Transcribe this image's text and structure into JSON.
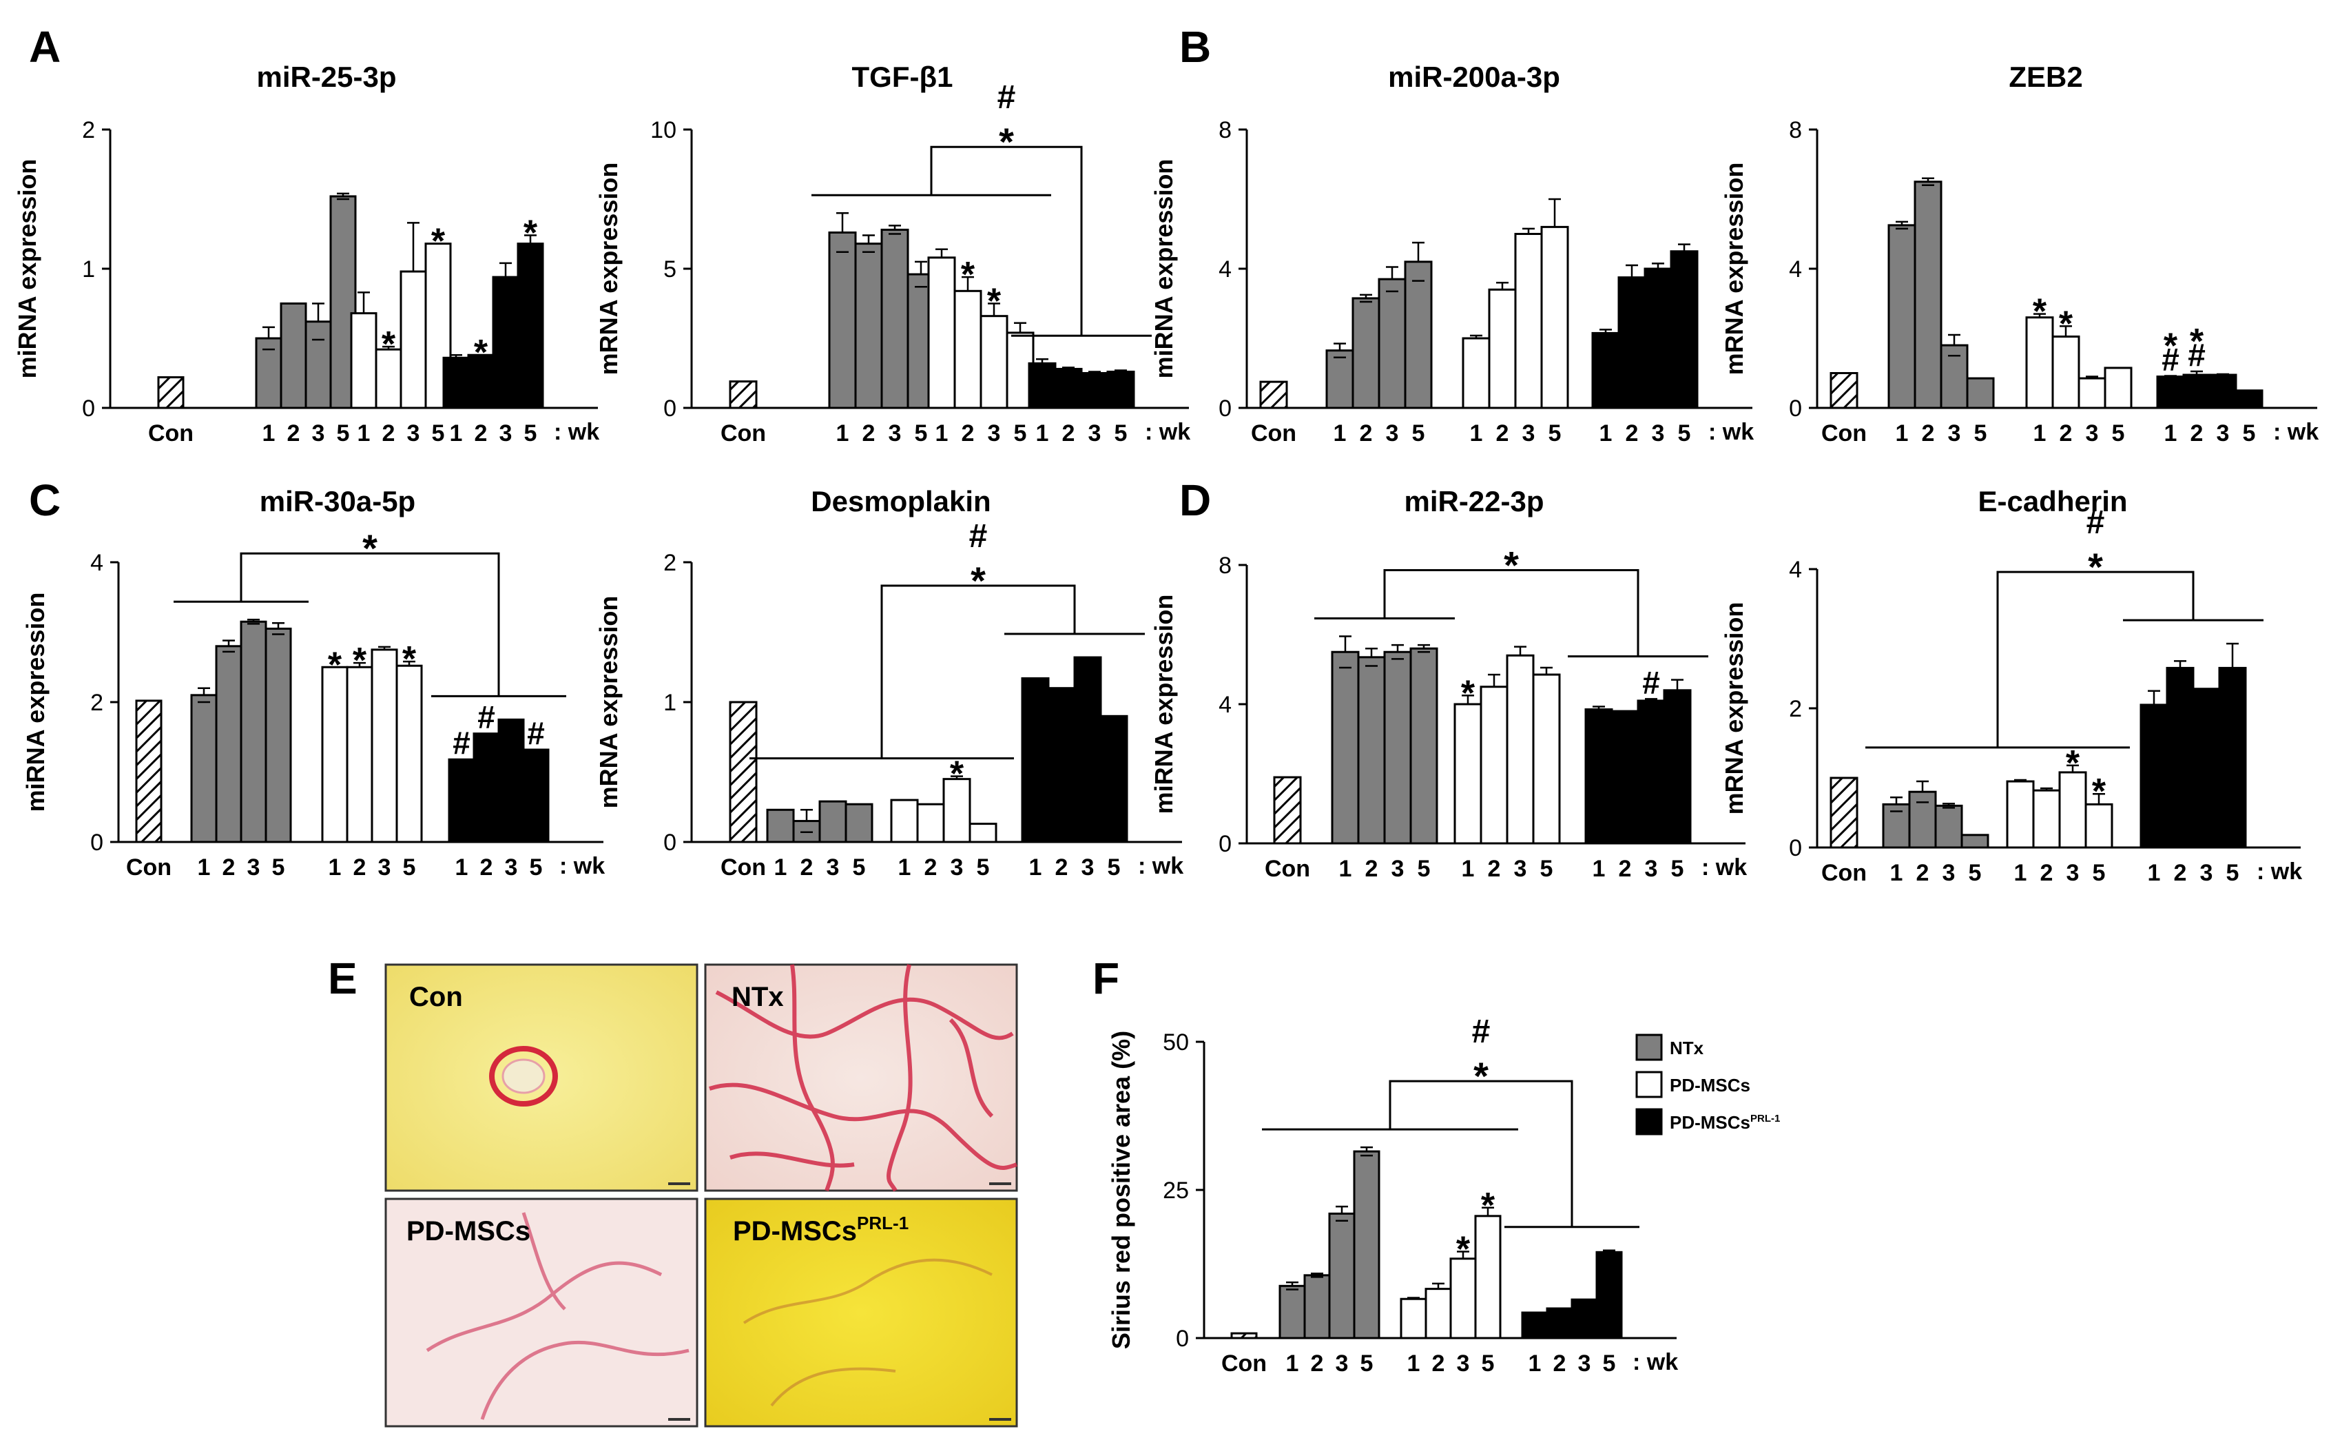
{
  "colors": {
    "ntx": "#7f7f7f",
    "pd": "#ffffff",
    "prl": "#000000",
    "axis": "#000000",
    "con_hatch": "#000000"
  },
  "common": {
    "con_label": "Con",
    "week_labels": [
      "1",
      "2",
      "3",
      "5"
    ],
    "wk_suffix": ": wk"
  },
  "panels": {
    "A": "A",
    "B": "B",
    "C": "C",
    "D": "D",
    "E": "E",
    "F": "F"
  },
  "legend": {
    "ntx": "NTx",
    "pd": "PD-MSCs",
    "prl_base": "PD-MSCs",
    "prl_sup": "PRL-1"
  },
  "histology": {
    "con": "Con",
    "ntx": "NTx",
    "pd": "PD-MSCs",
    "prl_base": "PD-MSCs",
    "prl_sup": "PRL-1"
  },
  "chart_data": [
    {
      "id": "mir25",
      "type": "bar",
      "title": "miR-25-3p",
      "ylabel": "miRNA expression",
      "ylim": [
        0,
        2
      ],
      "yticks": [
        "0",
        "1",
        "2"
      ],
      "wk_suffix": true,
      "con": 0.22,
      "series": [
        {
          "name": "NTx",
          "values": [
            0.5,
            0.75,
            0.62,
            1.52
          ],
          "errors": [
            0.08,
            0.0,
            0.13,
            0.02
          ],
          "marks": [
            "",
            "",
            "",
            ""
          ]
        },
        {
          "name": "PD-MSCs",
          "values": [
            0.68,
            0.42,
            0.98,
            1.18
          ],
          "errors": [
            0.15,
            0.02,
            0.35,
            0.0
          ],
          "marks": [
            "",
            "*",
            "",
            "*"
          ]
        },
        {
          "name": "PD-MSCs PRL-1",
          "values": [
            0.36,
            0.38,
            0.94,
            1.18
          ],
          "errors": [
            0.02,
            0.0,
            0.1,
            0.06
          ],
          "marks": [
            "",
            "*",
            "",
            "*"
          ]
        }
      ],
      "brackets": []
    },
    {
      "id": "tgfb1",
      "type": "bar",
      "title": "TGF-β1",
      "ylabel": "mRNA expression",
      "ylim": [
        0,
        10
      ],
      "yticks": [
        "0",
        "5",
        "10"
      ],
      "wk_suffix": true,
      "con": 0.95,
      "series": [
        {
          "name": "NTx",
          "values": [
            6.3,
            5.9,
            6.4,
            4.8
          ],
          "errors": [
            0.7,
            0.3,
            0.15,
            0.45
          ],
          "marks": [
            "",
            "",
            "",
            ""
          ]
        },
        {
          "name": "PD-MSCs",
          "values": [
            5.4,
            4.2,
            3.3,
            2.7
          ],
          "errors": [
            0.3,
            0.5,
            0.45,
            0.35
          ],
          "marks": [
            "",
            "*",
            "*",
            ""
          ]
        },
        {
          "name": "PD-MSCs PRL-1",
          "values": [
            1.6,
            1.4,
            1.25,
            1.3
          ],
          "errors": [
            0.15,
            0.05,
            0.05,
            0.05
          ],
          "marks": [
            "",
            "",
            "",
            ""
          ]
        }
      ],
      "brackets": [
        {
          "from": "ntx_pd",
          "to": "prl",
          "marks": [
            "#",
            "*"
          ]
        }
      ]
    },
    {
      "id": "mir200a",
      "type": "bar",
      "title": "miR-200a-3p",
      "ylabel": "miRNA expression",
      "ylim": [
        0,
        8
      ],
      "yticks": [
        "0",
        "4",
        "8"
      ],
      "wk_suffix": true,
      "con": 0.75,
      "series": [
        {
          "name": "NTx",
          "values": [
            1.65,
            3.15,
            3.7,
            4.2
          ],
          "errors": [
            0.2,
            0.1,
            0.35,
            0.55
          ],
          "marks": [
            "",
            "",
            "",
            ""
          ]
        },
        {
          "name": "PD-MSCs",
          "values": [
            2.0,
            3.4,
            5.0,
            5.2
          ],
          "errors": [
            0.08,
            0.2,
            0.15,
            0.8
          ],
          "marks": [
            "",
            "",
            "",
            ""
          ]
        },
        {
          "name": "PD-MSCs PRL-1",
          "values": [
            2.15,
            3.75,
            4.0,
            4.5
          ],
          "errors": [
            0.1,
            0.35,
            0.15,
            0.2
          ],
          "marks": [
            "",
            "",
            "",
            ""
          ]
        }
      ],
      "brackets": []
    },
    {
      "id": "zeb2",
      "type": "bar",
      "title": "ZEB2",
      "ylabel": "mRNA expression",
      "ylim": [
        0,
        8
      ],
      "yticks": [
        "0",
        "4",
        "8"
      ],
      "wk_suffix": true,
      "con": 1.0,
      "series": [
        {
          "name": "NTx",
          "values": [
            5.25,
            6.5,
            1.8,
            0.85
          ],
          "errors": [
            0.1,
            0.1,
            0.3,
            0.0
          ],
          "marks": [
            "",
            "",
            "",
            ""
          ]
        },
        {
          "name": "PD-MSCs",
          "values": [
            2.6,
            2.05,
            0.85,
            1.15
          ],
          "errors": [
            0.1,
            0.3,
            0.05,
            0.0
          ],
          "marks": [
            "*",
            "*",
            "",
            ""
          ]
        },
        {
          "name": "PD-MSCs PRL-1",
          "values": [
            0.9,
            0.95,
            0.95,
            0.5
          ],
          "errors": [
            0.02,
            0.1,
            0.02,
            0.0
          ],
          "marks": [
            "*#",
            "*#",
            "",
            ""
          ]
        }
      ],
      "brackets": []
    },
    {
      "id": "mir30a",
      "type": "bar",
      "title": "miR-30a-5p",
      "ylabel": "miRNA expression",
      "ylim": [
        0,
        4
      ],
      "yticks": [
        "0",
        "2",
        "4"
      ],
      "wk_suffix": true,
      "con": 2.02,
      "series": [
        {
          "name": "NTx",
          "values": [
            2.1,
            2.8,
            3.15,
            3.05
          ],
          "errors": [
            0.1,
            0.08,
            0.03,
            0.08
          ],
          "marks": [
            "",
            "",
            "",
            ""
          ]
        },
        {
          "name": "PD-MSCs",
          "values": [
            2.5,
            2.5,
            2.75,
            2.52
          ],
          "errors": [
            0.0,
            0.06,
            0.04,
            0.06
          ],
          "marks": [
            "*",
            "*",
            "",
            "*"
          ]
        },
        {
          "name": "PD-MSCs PRL-1",
          "values": [
            1.18,
            1.55,
            1.75,
            1.32
          ],
          "errors": [
            0.0,
            0.0,
            0.0,
            0.0
          ],
          "marks": [
            "#",
            "#",
            "",
            "#"
          ]
        }
      ],
      "brackets": [
        {
          "from": "ntx",
          "to": "prl",
          "marks": [
            "*"
          ]
        }
      ]
    },
    {
      "id": "desmoplakin",
      "type": "bar",
      "title": "Desmoplakin",
      "ylabel": "mRNA expression",
      "ylim": [
        0,
        2
      ],
      "yticks": [
        "0",
        "1",
        "2"
      ],
      "wk_suffix": true,
      "con": 1.0,
      "series": [
        {
          "name": "NTx",
          "values": [
            0.23,
            0.15,
            0.29,
            0.27
          ],
          "errors": [
            0.0,
            0.08,
            0.0,
            0.0
          ],
          "marks": [
            "",
            "",
            "",
            ""
          ]
        },
        {
          "name": "PD-MSCs",
          "values": [
            0.3,
            0.27,
            0.45,
            0.13
          ],
          "errors": [
            0.0,
            0.0,
            0.02,
            0.0
          ],
          "marks": [
            "",
            "",
            "*",
            ""
          ]
        },
        {
          "name": "PD-MSCs PRL-1",
          "values": [
            1.17,
            1.1,
            1.32,
            0.9
          ],
          "errors": [
            0.0,
            0.0,
            0.0,
            0.0
          ],
          "marks": [
            "",
            "",
            "",
            ""
          ]
        }
      ],
      "brackets": [
        {
          "from": "ntx_pd",
          "to": "prl",
          "marks": [
            "#",
            "*"
          ]
        }
      ]
    },
    {
      "id": "mir22",
      "type": "bar",
      "title": "miR-22-3p",
      "ylabel": "miRNA expression",
      "ylim": [
        0,
        8
      ],
      "yticks": [
        "0",
        "4",
        "8"
      ],
      "wk_suffix": true,
      "con": 1.9,
      "series": [
        {
          "name": "NTx",
          "values": [
            5.5,
            5.35,
            5.5,
            5.6
          ],
          "errors": [
            0.45,
            0.25,
            0.2,
            0.1
          ],
          "marks": [
            "",
            "",
            "",
            ""
          ]
        },
        {
          "name": "PD-MSCs",
          "values": [
            4.0,
            4.5,
            5.4,
            4.85
          ],
          "errors": [
            0.25,
            0.35,
            0.25,
            0.2
          ],
          "marks": [
            "*",
            "",
            "",
            ""
          ]
        },
        {
          "name": "PD-MSCs PRL-1",
          "values": [
            3.85,
            3.8,
            4.1,
            4.4
          ],
          "errors": [
            0.08,
            0.0,
            0.05,
            0.3
          ],
          "marks": [
            "",
            "",
            "#",
            ""
          ]
        }
      ],
      "brackets": [
        {
          "from": "ntx",
          "to": "prl",
          "marks": [
            "*"
          ]
        }
      ]
    },
    {
      "id": "ecadherin",
      "type": "bar",
      "title": "E-cadherin",
      "ylabel": "mRNA expression",
      "ylim": [
        0,
        4
      ],
      "yticks": [
        "0",
        "2",
        "4"
      ],
      "wk_suffix": true,
      "con": 1.0,
      "series": [
        {
          "name": "NTx",
          "values": [
            0.62,
            0.8,
            0.6,
            0.18
          ],
          "errors": [
            0.1,
            0.15,
            0.03,
            0.0
          ],
          "marks": [
            "",
            "",
            "",
            ""
          ]
        },
        {
          "name": "PD-MSCs",
          "values": [
            0.95,
            0.82,
            1.08,
            0.62
          ],
          "errors": [
            0.02,
            0.03,
            0.1,
            0.15
          ],
          "marks": [
            "",
            "",
            "*",
            "*"
          ]
        },
        {
          "name": "PD-MSCs PRL-1",
          "values": [
            2.05,
            2.58,
            2.28,
            2.58
          ],
          "errors": [
            0.2,
            0.1,
            0.0,
            0.35
          ],
          "marks": [
            "",
            "",
            "",
            ""
          ]
        }
      ],
      "brackets": [
        {
          "from": "ntx_pd",
          "to": "prl",
          "marks": [
            "#",
            "*"
          ]
        }
      ]
    },
    {
      "id": "siriusred",
      "type": "bar",
      "title": "",
      "ylabel": "Sirius red positive area (%)",
      "ylim": [
        0,
        50
      ],
      "yticks": [
        "0",
        "25",
        "50"
      ],
      "wk_suffix": true,
      "con": 0.8,
      "series": [
        {
          "name": "NTx",
          "values": [
            8.8,
            10.6,
            21.0,
            31.5
          ],
          "errors": [
            0.6,
            0.3,
            1.2,
            0.7
          ],
          "marks": [
            "",
            "",
            "",
            ""
          ]
        },
        {
          "name": "PD-MSCs",
          "values": [
            6.6,
            8.3,
            13.4,
            20.6
          ],
          "errors": [
            0.2,
            0.9,
            1.2,
            1.4
          ],
          "marks": [
            "",
            "",
            "*",
            "*"
          ]
        },
        {
          "name": "PD-MSCs PRL-1",
          "values": [
            4.3,
            5.0,
            6.5,
            14.5
          ],
          "errors": [
            0.0,
            0.0,
            0.0,
            0.3
          ],
          "marks": [
            "",
            "",
            "",
            ""
          ]
        }
      ],
      "brackets": [
        {
          "from": "ntx_pd",
          "to": "prl",
          "marks": [
            "#",
            "*"
          ]
        }
      ]
    }
  ]
}
